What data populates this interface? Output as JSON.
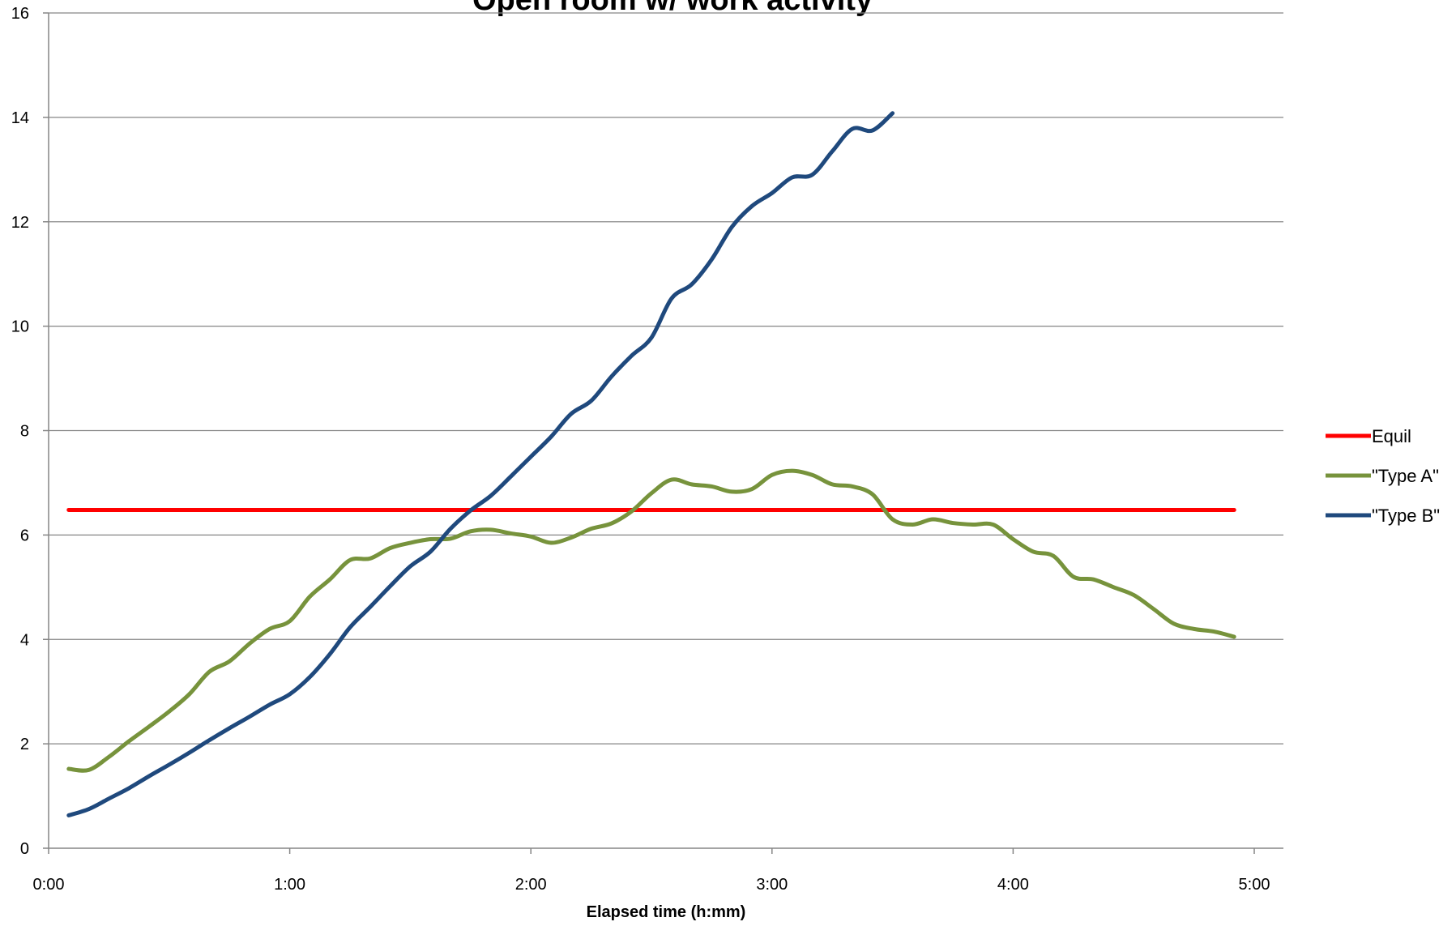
{
  "chart_data": {
    "type": "line",
    "title": "Open room w/ work activity",
    "xlabel": "Elapsed time (h:mm)",
    "ylabel": "",
    "x_unit": "h:mm",
    "xlim": [
      "0:00",
      "5:00"
    ],
    "xticks": [
      "0:00",
      "1:00",
      "2:00",
      "3:00",
      "4:00",
      "5:00"
    ],
    "ylim": [
      0,
      16
    ],
    "yticks": [
      0,
      2,
      4,
      6,
      8,
      10,
      12,
      14,
      16
    ],
    "grid": "horizontal major gridlines",
    "legend_position": "right",
    "series": [
      {
        "name": "Equil",
        "color": "#ff0000",
        "points": [
          [
            "0:05",
            6.48
          ],
          [
            "4:55",
            6.48
          ]
        ]
      },
      {
        "name": "\"Type A\"",
        "color": "#77933c",
        "points": [
          [
            "0:05",
            1.52
          ],
          [
            "0:10",
            1.5
          ],
          [
            "0:15",
            1.75
          ],
          [
            "0:20",
            2.05
          ],
          [
            "0:25",
            2.33
          ],
          [
            "0:30",
            2.62
          ],
          [
            "0:35",
            2.95
          ],
          [
            "0:40",
            3.38
          ],
          [
            "0:45",
            3.58
          ],
          [
            "0:50",
            3.92
          ],
          [
            "0:55",
            4.2
          ],
          [
            "1:00",
            4.35
          ],
          [
            "1:05",
            4.82
          ],
          [
            "1:10",
            5.15
          ],
          [
            "1:15",
            5.52
          ],
          [
            "1:20",
            5.55
          ],
          [
            "1:25",
            5.75
          ],
          [
            "1:30",
            5.85
          ],
          [
            "1:35",
            5.92
          ],
          [
            "1:40",
            5.93
          ],
          [
            "1:45",
            6.07
          ],
          [
            "1:50",
            6.1
          ],
          [
            "1:55",
            6.03
          ],
          [
            "2:00",
            5.97
          ],
          [
            "2:05",
            5.85
          ],
          [
            "2:10",
            5.95
          ],
          [
            "2:15",
            6.12
          ],
          [
            "2:20",
            6.22
          ],
          [
            "2:25",
            6.45
          ],
          [
            "2:30",
            6.8
          ],
          [
            "2:35",
            7.06
          ],
          [
            "2:40",
            6.97
          ],
          [
            "2:45",
            6.93
          ],
          [
            "2:50",
            6.83
          ],
          [
            "2:55",
            6.88
          ],
          [
            "3:00",
            7.15
          ],
          [
            "3:05",
            7.23
          ],
          [
            "3:10",
            7.15
          ],
          [
            "3:15",
            6.97
          ],
          [
            "3:20",
            6.93
          ],
          [
            "3:25",
            6.78
          ],
          [
            "3:30",
            6.3
          ],
          [
            "3:35",
            6.2
          ],
          [
            "3:40",
            6.3
          ],
          [
            "3:45",
            6.23
          ],
          [
            "3:50",
            6.2
          ],
          [
            "3:55",
            6.2
          ],
          [
            "4:00",
            5.92
          ],
          [
            "4:05",
            5.68
          ],
          [
            "4:10",
            5.6
          ],
          [
            "4:15",
            5.2
          ],
          [
            "4:20",
            5.15
          ],
          [
            "4:25",
            5.0
          ],
          [
            "4:30",
            4.85
          ],
          [
            "4:35",
            4.58
          ],
          [
            "4:40",
            4.3
          ],
          [
            "4:45",
            4.2
          ],
          [
            "4:50",
            4.15
          ],
          [
            "4:55",
            4.05
          ]
        ]
      },
      {
        "name": "\"Type B\"",
        "color": "#1f497d",
        "points": [
          [
            "0:05",
            0.63
          ],
          [
            "0:10",
            0.75
          ],
          [
            "0:15",
            0.95
          ],
          [
            "0:20",
            1.15
          ],
          [
            "0:25",
            1.38
          ],
          [
            "0:30",
            1.6
          ],
          [
            "0:35",
            1.83
          ],
          [
            "0:40",
            2.07
          ],
          [
            "0:45",
            2.3
          ],
          [
            "0:50",
            2.52
          ],
          [
            "0:55",
            2.75
          ],
          [
            "1:00",
            2.95
          ],
          [
            "1:05",
            3.28
          ],
          [
            "1:10",
            3.72
          ],
          [
            "1:15",
            4.23
          ],
          [
            "1:20",
            4.62
          ],
          [
            "1:25",
            5.02
          ],
          [
            "1:30",
            5.4
          ],
          [
            "1:35",
            5.68
          ],
          [
            "1:40",
            6.12
          ],
          [
            "1:45",
            6.47
          ],
          [
            "1:50",
            6.75
          ],
          [
            "1:55",
            7.12
          ],
          [
            "2:00",
            7.5
          ],
          [
            "2:05",
            7.88
          ],
          [
            "2:10",
            8.32
          ],
          [
            "2:15",
            8.57
          ],
          [
            "2:20",
            9.03
          ],
          [
            "2:25",
            9.43
          ],
          [
            "2:30",
            9.78
          ],
          [
            "2:35",
            10.53
          ],
          [
            "2:40",
            10.8
          ],
          [
            "2:45",
            11.28
          ],
          [
            "2:50",
            11.9
          ],
          [
            "2:55",
            12.3
          ],
          [
            "3:00",
            12.55
          ],
          [
            "3:05",
            12.85
          ],
          [
            "3:10",
            12.9
          ],
          [
            "3:15",
            13.35
          ],
          [
            "3:20",
            13.78
          ],
          [
            "3:25",
            13.75
          ],
          [
            "3:30",
            14.08
          ]
        ]
      }
    ]
  }
}
